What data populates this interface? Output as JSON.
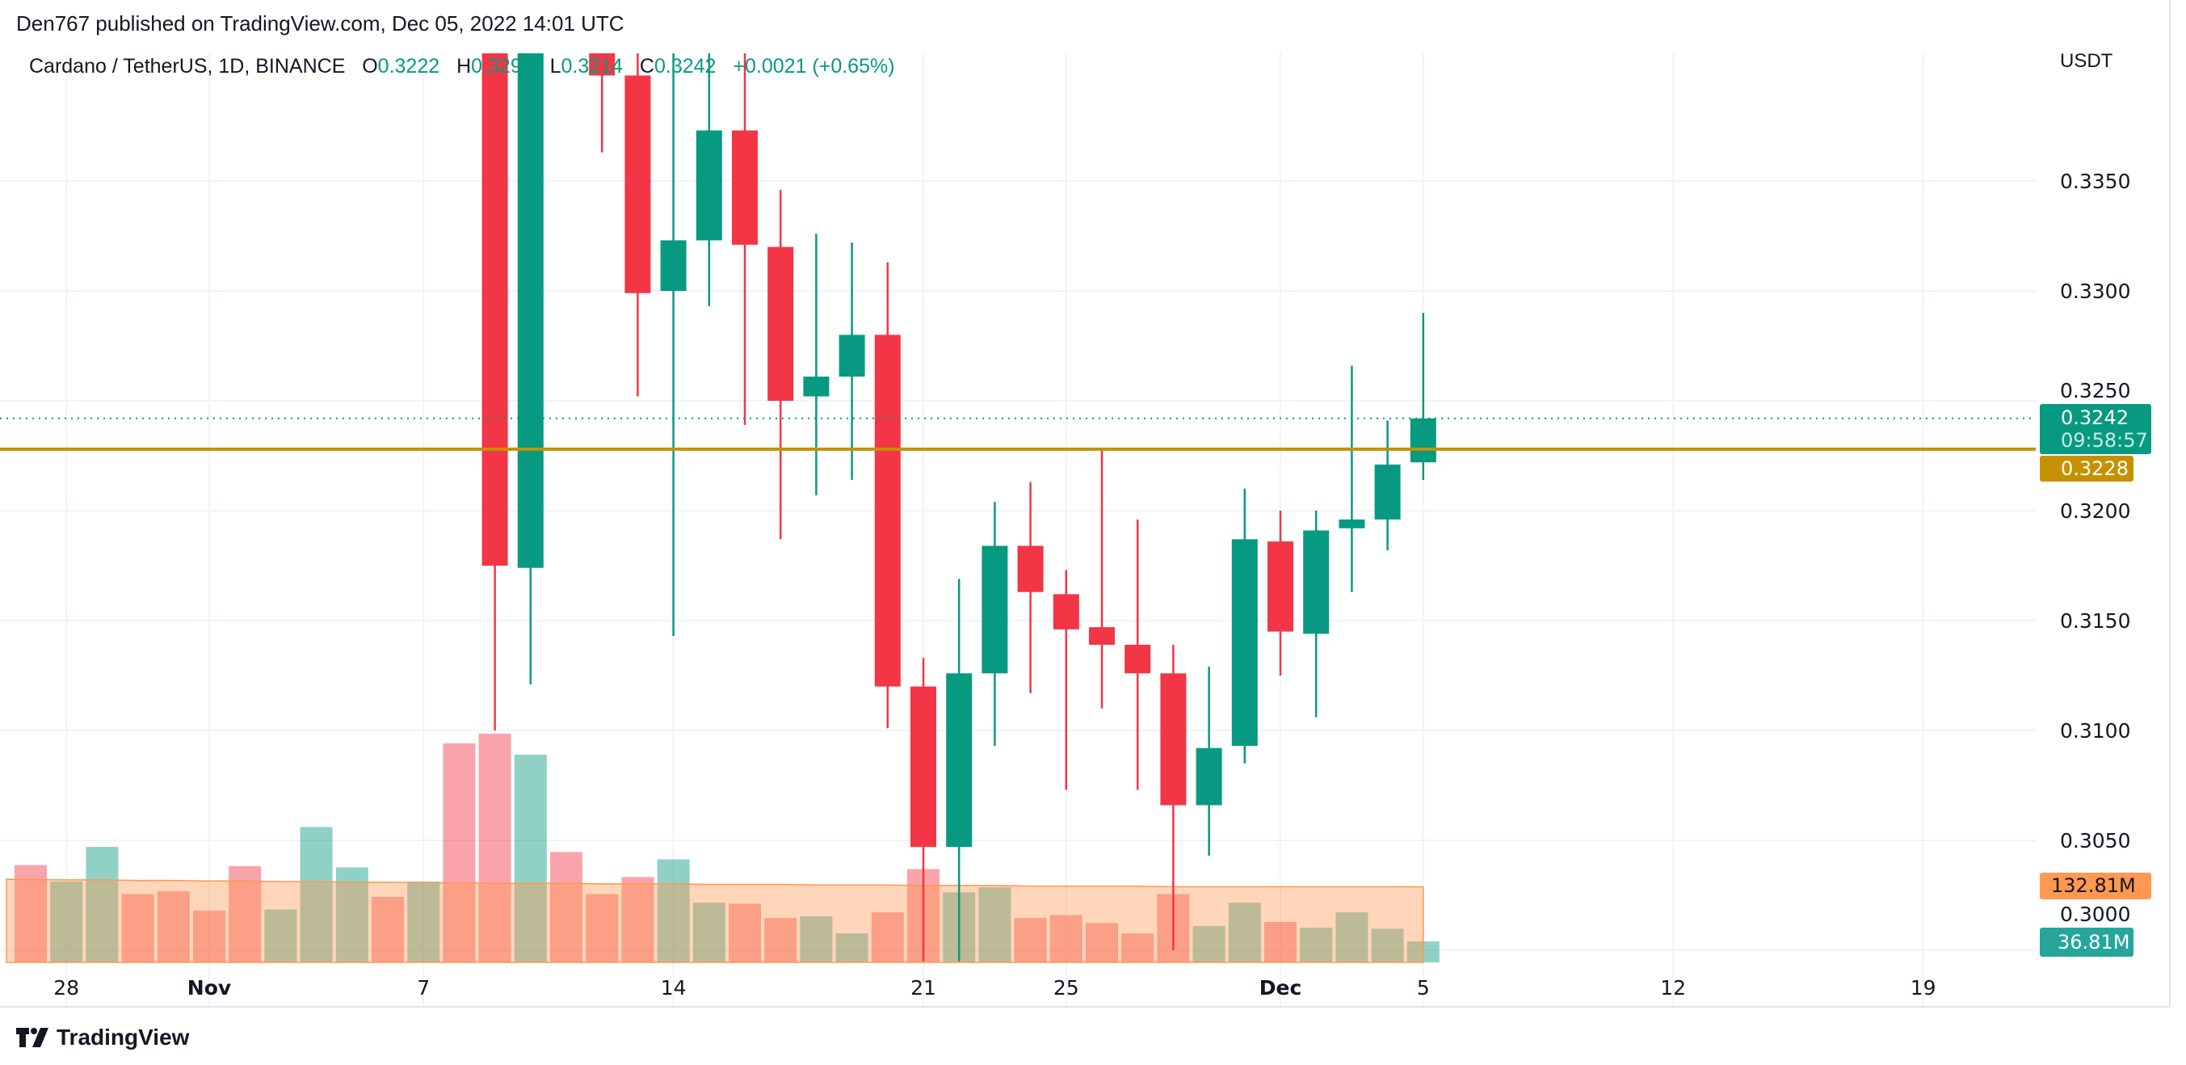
{
  "header": {
    "published": "Den767 published on TradingView.com, Dec 05, 2022 14:01 UTC"
  },
  "legend": {
    "symbol": "Cardano / TetherUS, 1D, BINANCE",
    "o_label": "O",
    "o": "0.3222",
    "h_label": "H",
    "h": "0.3290",
    "l_label": "L",
    "l": "0.3214",
    "c_label": "C",
    "c": "0.3242",
    "change": "+0.0021 (+0.65%)"
  },
  "price_axis": {
    "currency": "USDT",
    "ticks": [
      "0.3350",
      "0.3300",
      "0.3250",
      "0.3200",
      "0.3150",
      "0.3100",
      "0.3050",
      "0.3000"
    ]
  },
  "tags": {
    "last_price": "0.3242",
    "countdown": "09:58:57",
    "hline": "0.3228",
    "volume_ma": "132.81M",
    "volume": "36.81M"
  },
  "time_axis": {
    "labels": [
      {
        "text": "28",
        "day": 1,
        "bold": false
      },
      {
        "text": "Nov",
        "day": 5,
        "bold": true
      },
      {
        "text": "7",
        "day": 11,
        "bold": false
      },
      {
        "text": "14",
        "day": 18,
        "bold": false
      },
      {
        "text": "21",
        "day": 25,
        "bold": false
      },
      {
        "text": "25",
        "day": 29,
        "bold": false
      },
      {
        "text": "Dec",
        "day": 35,
        "bold": true
      },
      {
        "text": "5",
        "day": 39,
        "bold": false
      },
      {
        "text": "12",
        "day": 46,
        "bold": false
      },
      {
        "text": "19",
        "day": 53,
        "bold": false
      }
    ]
  },
  "brand": {
    "name": "TradingView"
  },
  "colors": {
    "up": "#089981",
    "down": "#f23645",
    "hline": "#c59100",
    "volume_ma": "#ff9850",
    "volume_tag": "#26a69a",
    "grid": "#f0f3fa"
  },
  "chart_data": {
    "type": "candlestick",
    "ylim": [
      0.2995,
      0.341
    ],
    "horizontal_line": 0.3228,
    "last_price": 0.3242,
    "candles": [
      {
        "date": "Nov 9",
        "o": 0.345,
        "h": 0.348,
        "l": 0.31,
        "c": 0.3175
      },
      {
        "date": "Nov 10",
        "o": 0.3174,
        "h": 0.347,
        "l": 0.3121,
        "c": 0.344
      },
      {
        "date": "Nov 12",
        "o": 0.343,
        "h": 0.345,
        "l": 0.3363,
        "c": 0.3398
      },
      {
        "date": "Nov 13",
        "o": 0.3398,
        "h": 0.342,
        "l": 0.3252,
        "c": 0.3299
      },
      {
        "date": "Nov 14",
        "o": 0.33,
        "h": 0.342,
        "l": 0.3143,
        "c": 0.3323
      },
      {
        "date": "Nov 15",
        "o": 0.3323,
        "h": 0.342,
        "l": 0.3293,
        "c": 0.3373
      },
      {
        "date": "Nov 16",
        "o": 0.3373,
        "h": 0.342,
        "l": 0.3239,
        "c": 0.3321
      },
      {
        "date": "Nov 17",
        "o": 0.332,
        "h": 0.3346,
        "l": 0.3187,
        "c": 0.325
      },
      {
        "date": "Nov 18",
        "o": 0.3252,
        "h": 0.3326,
        "l": 0.3207,
        "c": 0.3261
      },
      {
        "date": "Nov 19",
        "o": 0.3261,
        "h": 0.3322,
        "l": 0.3214,
        "c": 0.328
      },
      {
        "date": "Nov 20",
        "o": 0.328,
        "h": 0.3313,
        "l": 0.3101,
        "c": 0.312
      },
      {
        "date": "Nov 21",
        "o": 0.312,
        "h": 0.3133,
        "l": 0.2995,
        "c": 0.3047
      },
      {
        "date": "Nov 22",
        "o": 0.3047,
        "h": 0.3169,
        "l": 0.2995,
        "c": 0.3126
      },
      {
        "date": "Nov 23",
        "o": 0.3126,
        "h": 0.3204,
        "l": 0.3093,
        "c": 0.3184
      },
      {
        "date": "Nov 24",
        "o": 0.3184,
        "h": 0.3213,
        "l": 0.3117,
        "c": 0.3163
      },
      {
        "date": "Nov 25",
        "o": 0.3162,
        "h": 0.3173,
        "l": 0.3073,
        "c": 0.3146
      },
      {
        "date": "Nov 26",
        "o": 0.3147,
        "h": 0.3228,
        "l": 0.311,
        "c": 0.3139
      },
      {
        "date": "Nov 27",
        "o": 0.3139,
        "h": 0.3196,
        "l": 0.3073,
        "c": 0.3126
      },
      {
        "date": "Nov 28",
        "o": 0.3126,
        "h": 0.3139,
        "l": 0.3,
        "c": 0.3066
      },
      {
        "date": "Nov 29",
        "o": 0.3066,
        "h": 0.3129,
        "l": 0.3043,
        "c": 0.3092
      },
      {
        "date": "Nov 30",
        "o": 0.3093,
        "h": 0.321,
        "l": 0.3085,
        "c": 0.3187
      },
      {
        "date": "Dec 1",
        "o": 0.3186,
        "h": 0.32,
        "l": 0.3125,
        "c": 0.3145
      },
      {
        "date": "Dec 2",
        "o": 0.3144,
        "h": 0.32,
        "l": 0.3106,
        "c": 0.3191
      },
      {
        "date": "Dec 3",
        "o": 0.3192,
        "h": 0.3266,
        "l": 0.3163,
        "c": 0.3196
      },
      {
        "date": "Dec 4",
        "o": 0.3196,
        "h": 0.3241,
        "l": 0.3182,
        "c": 0.3221
      },
      {
        "date": "Dec 5",
        "o": 0.3222,
        "h": 0.329,
        "l": 0.3214,
        "c": 0.3242
      }
    ],
    "volume": [
      {
        "date": "Oct 27",
        "v": 171,
        "up": false
      },
      {
        "date": "Oct 28",
        "v": 142,
        "up": true
      },
      {
        "date": "Oct 29",
        "v": 203,
        "up": true
      },
      {
        "date": "Oct 30",
        "v": 120,
        "up": false
      },
      {
        "date": "Oct 31",
        "v": 125,
        "up": false
      },
      {
        "date": "Nov 1",
        "v": 91,
        "up": false
      },
      {
        "date": "Nov 2",
        "v": 169,
        "up": false
      },
      {
        "date": "Nov 3",
        "v": 93,
        "up": true
      },
      {
        "date": "Nov 4",
        "v": 238,
        "up": true
      },
      {
        "date": "Nov 5",
        "v": 167,
        "up": true
      },
      {
        "date": "Nov 6",
        "v": 115,
        "up": false
      },
      {
        "date": "Nov 7",
        "v": 142,
        "up": true
      },
      {
        "date": "Nov 8",
        "v": 385,
        "up": false
      },
      {
        "date": "Nov 9",
        "v": 402,
        "up": false
      },
      {
        "date": "Nov 10",
        "v": 365,
        "up": true
      },
      {
        "date": "Nov 11",
        "v": 194,
        "up": false
      },
      {
        "date": "Nov 12",
        "v": 120,
        "up": false
      },
      {
        "date": "Nov 13",
        "v": 150,
        "up": false
      },
      {
        "date": "Nov 14",
        "v": 181,
        "up": true
      },
      {
        "date": "Nov 15",
        "v": 105,
        "up": true
      },
      {
        "date": "Nov 16",
        "v": 103,
        "up": false
      },
      {
        "date": "Nov 17",
        "v": 78,
        "up": false
      },
      {
        "date": "Nov 18",
        "v": 81,
        "up": true
      },
      {
        "date": "Nov 19",
        "v": 51,
        "up": true
      },
      {
        "date": "Nov 20",
        "v": 88,
        "up": false
      },
      {
        "date": "Nov 21",
        "v": 164,
        "up": false
      },
      {
        "date": "Nov 22",
        "v": 123,
        "up": true
      },
      {
        "date": "Nov 23",
        "v": 132,
        "up": true
      },
      {
        "date": "Nov 24",
        "v": 78,
        "up": false
      },
      {
        "date": "Nov 25",
        "v": 83,
        "up": false
      },
      {
        "date": "Nov 26",
        "v": 69,
        "up": false
      },
      {
        "date": "Nov 27",
        "v": 51,
        "up": false
      },
      {
        "date": "Nov 28",
        "v": 120,
        "up": false
      },
      {
        "date": "Nov 29",
        "v": 64,
        "up": true
      },
      {
        "date": "Nov 30",
        "v": 105,
        "up": true
      },
      {
        "date": "Dec 1",
        "v": 71,
        "up": false
      },
      {
        "date": "Dec 2",
        "v": 61,
        "up": true
      },
      {
        "date": "Dec 3",
        "v": 88,
        "up": true
      },
      {
        "date": "Dec 4",
        "v": 59,
        "up": true
      },
      {
        "date": "Dec 5",
        "v": 36.81,
        "up": true
      }
    ],
    "volume_unit": "M",
    "volume_ma": [
      146,
      145,
      145,
      144,
      144,
      143,
      143,
      142,
      142,
      141,
      141,
      140,
      140,
      139,
      139,
      139,
      138,
      138,
      138,
      137,
      137,
      137,
      136,
      136,
      136,
      135,
      135,
      135,
      134,
      134,
      134,
      134,
      133,
      133,
      133,
      133,
      133,
      133,
      133,
      132.81
    ]
  }
}
